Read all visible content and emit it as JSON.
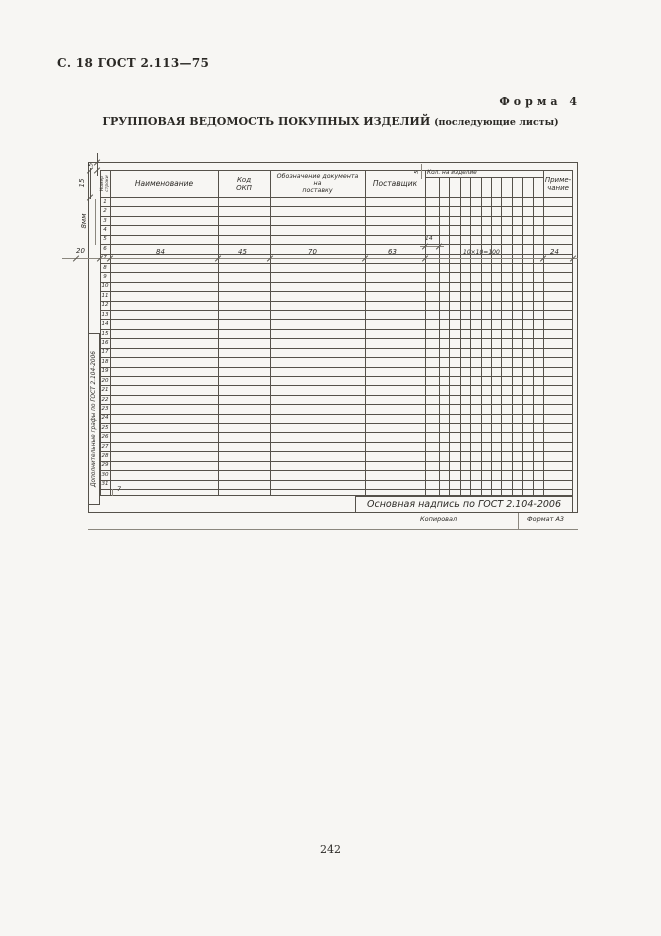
{
  "header": {
    "page_ref": "С. 18 ГОСТ 2.113—75",
    "form_label": "Форма 4",
    "title": "ГРУППОВАЯ ВЕДОМОСТЬ ПОКУПНЫХ ИЗДЕЛИЙ",
    "title_suffix": "(последующие листы)"
  },
  "table": {
    "col_line_number_label": "Номер\nстроки",
    "col_name_label": "Наименование",
    "col_okp_label": "Код\nОКП",
    "col_doc_label": "Обозначение документа\nна\nпоставку",
    "col_supplier_label": "Поставщик",
    "col_qty_label": "Кол.  на  изделие",
    "col_note_label": "Приме-\nчание",
    "row_numbers": [
      "1",
      "2",
      "3",
      "4",
      "5",
      "6",
      "7",
      "8",
      "9",
      "10",
      "11",
      "12",
      "13",
      "14",
      "15",
      "16",
      "17",
      "18",
      "19",
      "20",
      "21",
      "22",
      "23",
      "24",
      "25",
      "26",
      "27",
      "28",
      "29",
      "30",
      "31"
    ]
  },
  "dimensions": {
    "top_gap": "5",
    "header_height": "15",
    "row_height": "8мм",
    "left_offset": "20",
    "name_width": "84",
    "okp_width": "45",
    "doc_width": "70",
    "supplier_width": "63",
    "qty_first_col": "14",
    "qty_total": "10×10=100",
    "note_width": "24",
    "qty_header_height": "5",
    "bottom_strip": "7"
  },
  "notes": {
    "left_vertical": "Дополнительные графы по ГОСТ 2.104-2006",
    "title_block": "Основная надпись по ГОСТ 2.104-2006",
    "copied": "Копировал",
    "format": "Формат А3"
  },
  "footer": {
    "page_number": "242"
  }
}
